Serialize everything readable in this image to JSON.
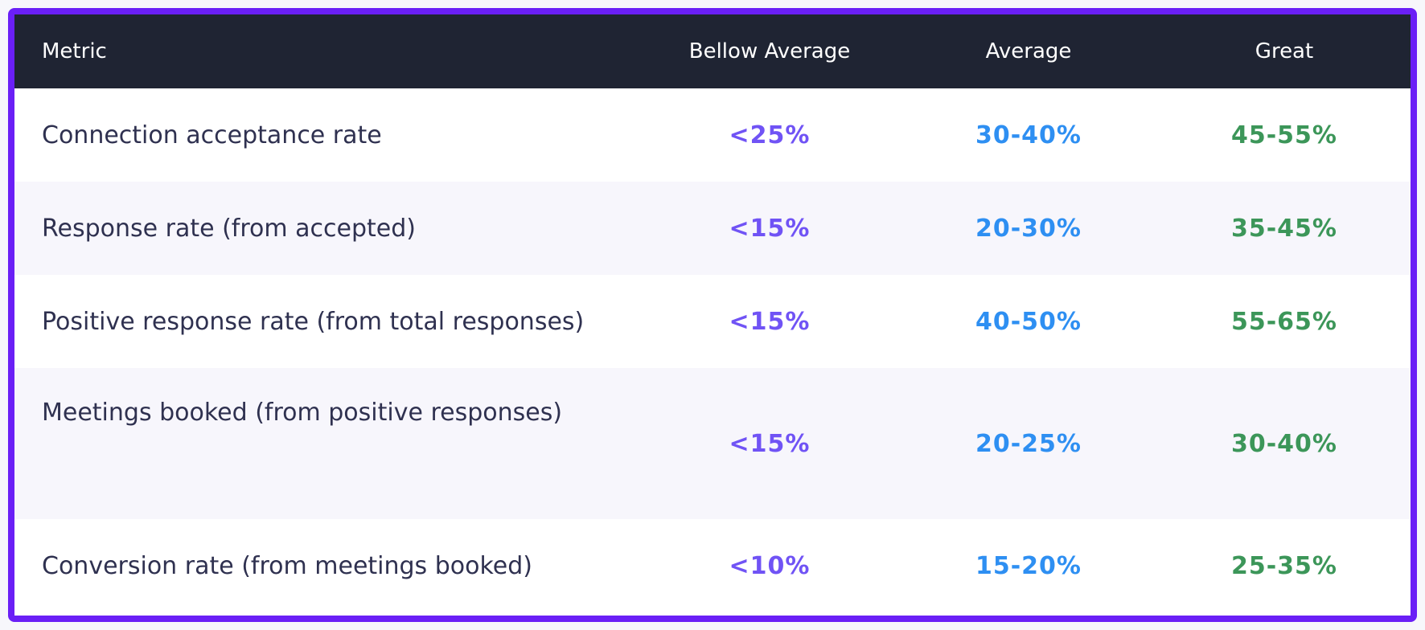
{
  "table": {
    "headers": {
      "metric": "Metric",
      "below": "Bellow Average",
      "average": "Average",
      "great": "Great"
    },
    "rows": [
      {
        "metric": "Connection acceptance rate",
        "below": "<25%",
        "average": "30-40%",
        "great": "45-55%"
      },
      {
        "metric": "Response rate (from accepted)",
        "below": "<15%",
        "average": "20-30%",
        "great": "35-45%"
      },
      {
        "metric": "Positive response rate (from total responses)",
        "below": "<15%",
        "average": "40-50%",
        "great": "55-65%"
      },
      {
        "metric": "Meetings booked (from positive responses)",
        "below": "<15%",
        "average": "20-25%",
        "great": "30-40%"
      },
      {
        "metric": "Conversion rate (from meetings booked)",
        "below": "<10%",
        "average": "15-20%",
        "great": "25-35%"
      }
    ]
  },
  "colors": {
    "frame_border": "#6a1ff6",
    "header_bg": "#1f2433",
    "below_text": "#7053f5",
    "average_text": "#2e8ff2",
    "great_text": "#3c9659"
  }
}
